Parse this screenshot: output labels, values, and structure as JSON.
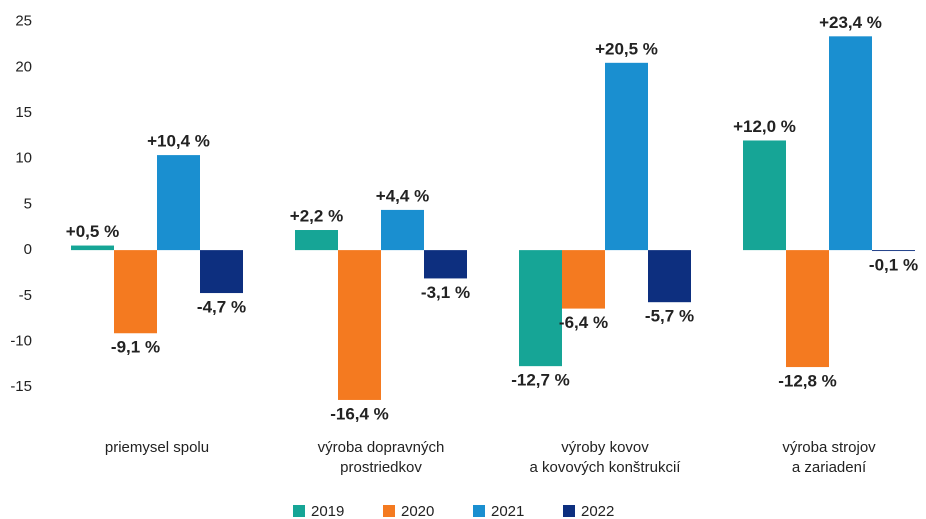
{
  "chart_data": {
    "type": "bar",
    "categories": [
      "priemysel spolu",
      "výroba dopravných\nprostriedkov",
      "výroby kovov\na kovových konštrukcií",
      "výroba strojov\na zariadení"
    ],
    "series": [
      {
        "name": "2019",
        "color": "#16a596",
        "values": [
          0.5,
          2.2,
          -12.7,
          12.0
        ],
        "value_labels": [
          "+0,5 %",
          "+2,2 %",
          "-12,7 %",
          "+12,0 %"
        ]
      },
      {
        "name": "2020",
        "color": "#f47a20",
        "values": [
          -9.1,
          -16.4,
          -6.4,
          -12.8
        ],
        "value_labels": [
          "-9,1 %",
          "-16,4 %",
          "-6,4 %",
          "-12,8 %"
        ]
      },
      {
        "name": "2021",
        "color": "#1a8fd0",
        "values": [
          10.4,
          4.4,
          20.5,
          23.4
        ],
        "value_labels": [
          "+10,4 %",
          "+4,4 %",
          "+20,5 %",
          "+23,4 %"
        ]
      },
      {
        "name": "2022",
        "color": "#0d2f7f",
        "values": [
          -4.7,
          -3.1,
          -5.7,
          -0.1
        ],
        "value_labels": [
          "-4,7 %",
          "-3,1 %",
          "-5,7 %",
          "-0,1 %"
        ]
      }
    ],
    "ylim": [
      -17.5,
      26.5
    ],
    "yticks": [
      -15,
      -10,
      -5,
      0,
      5,
      10,
      15,
      20,
      25
    ],
    "grid": false,
    "legend": "bottom"
  }
}
